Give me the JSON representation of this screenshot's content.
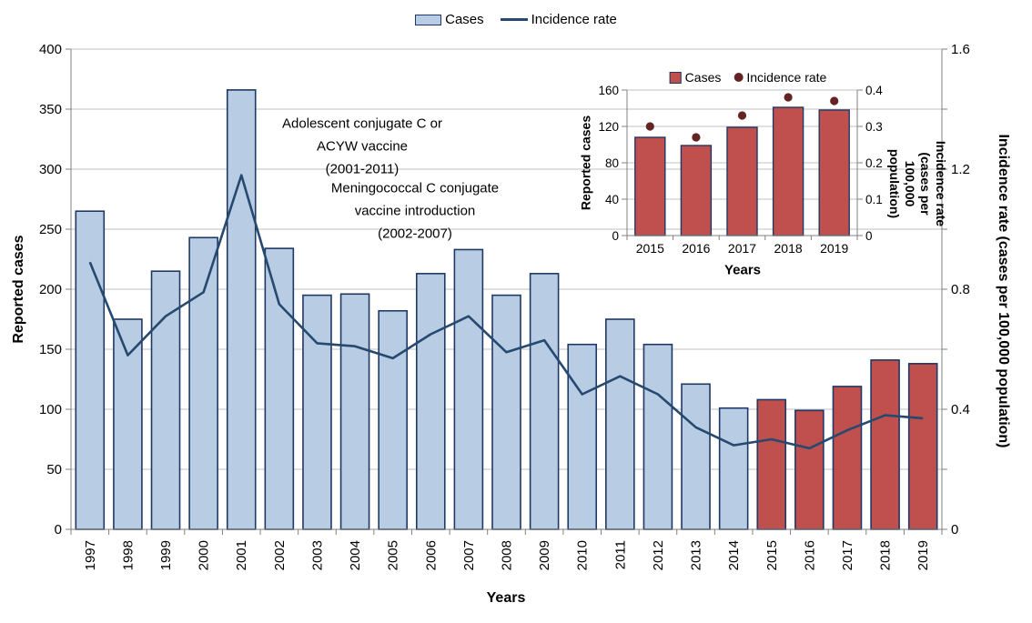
{
  "colors": {
    "bar_blue_fill": "#B8CCE4",
    "bar_red_fill": "#C0504D",
    "bar_border": "#1F3864",
    "line_navy": "#26496F",
    "dot_dark_red": "#632423",
    "gridline": "#C0C0C0",
    "axis_line": "#808080",
    "text": "#000000"
  },
  "chart_data": [
    {
      "id": "main",
      "type": "bar+line",
      "xlabel": "Years",
      "ylabel_left": "Reported cases",
      "ylabel_right": "Incidence rate (cases per 100,000 population)",
      "x": [
        1997,
        1998,
        1999,
        2000,
        2001,
        2002,
        2003,
        2004,
        2005,
        2006,
        2007,
        2008,
        2009,
        2010,
        2011,
        2012,
        2013,
        2014,
        2015,
        2016,
        2017,
        2018,
        2019
      ],
      "series": [
        {
          "name": "Cases",
          "type": "bar",
          "axis": "left",
          "values": [
            265,
            175,
            215,
            243,
            366,
            234,
            195,
            196,
            182,
            213,
            233,
            195,
            213,
            154,
            175,
            154,
            121,
            101,
            108,
            99,
            119,
            141,
            138
          ]
        },
        {
          "name": "Incidence rate",
          "type": "line",
          "axis": "right",
          "values": [
            0.89,
            0.58,
            0.71,
            0.79,
            1.18,
            0.75,
            0.62,
            0.61,
            0.57,
            0.65,
            0.71,
            0.59,
            0.63,
            0.45,
            0.51,
            0.45,
            0.34,
            0.28,
            0.3,
            0.27,
            0.33,
            0.38,
            0.37
          ]
        }
      ],
      "red_bar_years": [
        2015,
        2016,
        2017,
        2018,
        2019
      ],
      "ylim_left": [
        0,
        400
      ],
      "ytick_step_left": 50,
      "ylim_right": [
        0,
        1.6
      ],
      "yticks_right_labeled": [
        0,
        0.4,
        0.8,
        1.2,
        1.6
      ],
      "ytick_minor_right": 0.2,
      "grid": true,
      "legend_position": "top-center",
      "annotations": [
        {
          "text": "Adolescent conjugate C or\nACYW vaccine\n(2001-2011)"
        },
        {
          "text": "Meningococcal C conjugate\nvaccine introduction\n(2002-2007)"
        }
      ]
    },
    {
      "id": "inset",
      "type": "bar+scatter",
      "xlabel": "Years",
      "ylabel_left": "Reported cases",
      "ylabel_right": "Incidence rate (cases per\n100,000 population)",
      "x": [
        2015,
        2016,
        2017,
        2018,
        2019
      ],
      "series": [
        {
          "name": "Cases",
          "type": "bar",
          "axis": "left",
          "values": [
            108,
            99,
            119,
            141,
            138
          ]
        },
        {
          "name": "Incidence rate",
          "type": "scatter",
          "axis": "right",
          "values": [
            0.3,
            0.27,
            0.33,
            0.38,
            0.37
          ]
        }
      ],
      "ylim_left": [
        0,
        160
      ],
      "ytick_step_left": 40,
      "ylim_right": [
        0,
        0.4
      ],
      "ytick_step_right": 0.1,
      "grid": true,
      "legend_position": "top-center"
    }
  ]
}
